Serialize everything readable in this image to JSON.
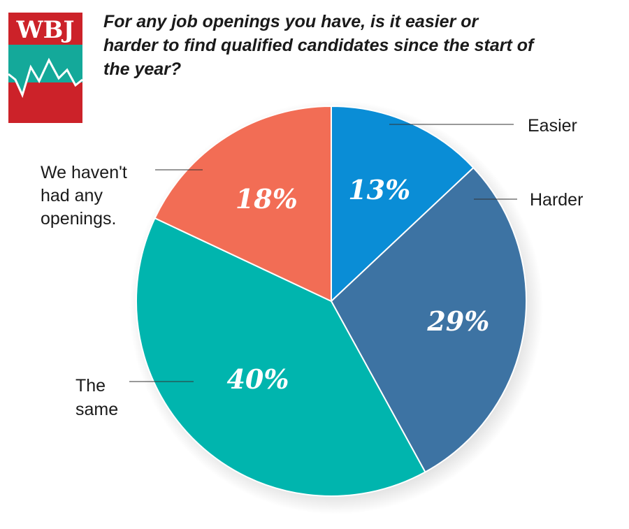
{
  "brand": {
    "logo_text": "WBJ",
    "colors": {
      "red": "#cc2229",
      "teal": "#14a99a"
    }
  },
  "chart_data": {
    "type": "pie",
    "title": "For any job openings you have, is it easier or harder to find qualified candidates since the start of the year?",
    "slices": [
      {
        "label": "Easier",
        "value": 13,
        "value_label": "13%",
        "color": "#0a8dd6"
      },
      {
        "label": "Harder",
        "value": 29,
        "value_label": "29%",
        "color": "#3d73a3"
      },
      {
        "label": "The same",
        "value": 40,
        "value_label": "40%",
        "color": "#00b5ae"
      },
      {
        "label": "We haven't had any openings.",
        "value": 18,
        "value_label": "18%",
        "color": "#f26d55"
      }
    ]
  }
}
